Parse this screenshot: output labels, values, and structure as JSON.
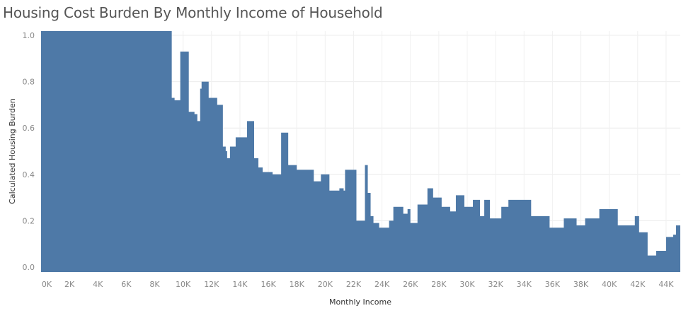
{
  "chart_data": {
    "type": "area",
    "title": "Housing Cost Burden By Monthly Income of Household",
    "xlabel": "Monthly Income",
    "ylabel": "Calculated Housing Burden",
    "xlim": [
      0,
      45000
    ],
    "ylim": [
      0,
      1.0
    ],
    "x_ticks": [
      "0K",
      "2K",
      "4K",
      "6K",
      "8K",
      "10K",
      "12K",
      "14K",
      "16K",
      "18K",
      "20K",
      "22K",
      "24K",
      "26K",
      "28K",
      "30K",
      "32K",
      "34K",
      "36K",
      "38K",
      "40K",
      "42K",
      "44K"
    ],
    "y_ticks": [
      "0.0",
      "0.2",
      "0.4",
      "0.6",
      "0.8",
      "1.0"
    ],
    "grid": true,
    "color": "#4e79a7",
    "series": [
      {
        "x": [
          0,
          9200,
          9400,
          9800,
          10400,
          10800,
          11000,
          11200,
          11300,
          11800,
          12400,
          12800,
          13000,
          13100,
          13300,
          13700,
          14500,
          15000,
          15300,
          15600,
          16300,
          16900,
          17400,
          18000,
          19200,
          19500,
          19700,
          20300,
          20500,
          21000,
          21300,
          21400,
          22200,
          22800,
          23000,
          23200,
          23400,
          23800,
          24500,
          24800,
          25500,
          25800,
          26000,
          26500,
          27200,
          27600,
          28200,
          28800,
          29200,
          29800,
          30400,
          30900,
          31200,
          31600,
          32400,
          32900,
          33800,
          34500,
          35800,
          36800,
          37200,
          37700,
          38300,
          39300,
          40600,
          41800,
          42100,
          42700,
          43300,
          44000,
          44500,
          44700,
          45000
        ],
        "y": [
          1.0,
          0.73,
          0.72,
          0.93,
          0.67,
          0.66,
          0.63,
          0.77,
          0.8,
          0.73,
          0.7,
          0.52,
          0.5,
          0.47,
          0.52,
          0.56,
          0.63,
          0.47,
          0.43,
          0.41,
          0.4,
          0.58,
          0.44,
          0.42,
          0.37,
          0.37,
          0.4,
          0.33,
          0.33,
          0.34,
          0.33,
          0.42,
          0.2,
          0.44,
          0.32,
          0.22,
          0.19,
          0.17,
          0.2,
          0.26,
          0.23,
          0.25,
          0.19,
          0.27,
          0.34,
          0.3,
          0.26,
          0.24,
          0.31,
          0.26,
          0.29,
          0.22,
          0.29,
          0.21,
          0.26,
          0.29,
          0.29,
          0.22,
          0.17,
          0.21,
          0.21,
          0.18,
          0.21,
          0.25,
          0.18,
          0.22,
          0.15,
          0.05,
          0.07,
          0.13,
          0.14,
          0.18,
          0.11
        ]
      }
    ]
  }
}
